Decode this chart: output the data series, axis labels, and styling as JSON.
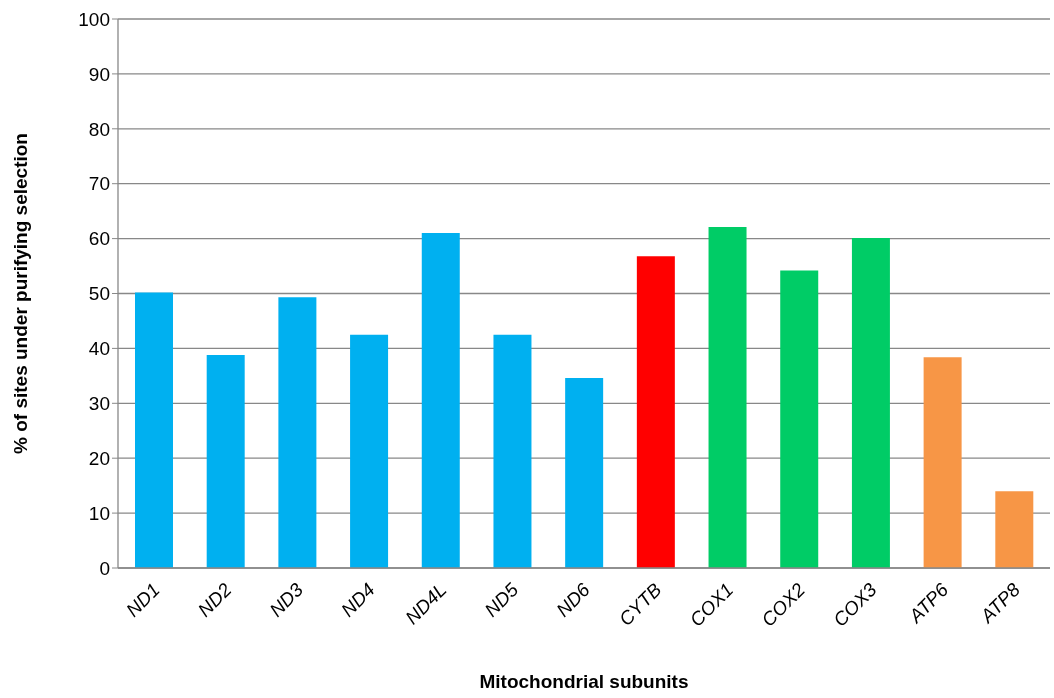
{
  "chart_data": {
    "type": "bar",
    "xlabel": "Mitochondrial subunits",
    "ylabel": "% of sites under purifying selection",
    "categories": [
      "ND1",
      "ND2",
      "ND3",
      "ND4",
      "ND4L",
      "ND5",
      "ND6",
      "CYTB",
      "COX1",
      "COX2",
      "COX3",
      "ATP6",
      "ATP8"
    ],
    "values": [
      50.2,
      38.8,
      49.3,
      42.5,
      61.0,
      42.5,
      34.6,
      56.8,
      62.1,
      54.2,
      60.1,
      38.4,
      14.0
    ],
    "colors": [
      "#00b0f0",
      "#00b0f0",
      "#00b0f0",
      "#00b0f0",
      "#00b0f0",
      "#00b0f0",
      "#00b0f0",
      "#ff0000",
      "#00cc66",
      "#00cc66",
      "#00cc66",
      "#f79646",
      "#f79646"
    ],
    "ylim": [
      0,
      100
    ],
    "yticks": [
      0,
      10,
      20,
      30,
      40,
      50,
      60,
      70,
      80,
      90,
      100
    ],
    "grid": "y",
    "legend": false
  }
}
